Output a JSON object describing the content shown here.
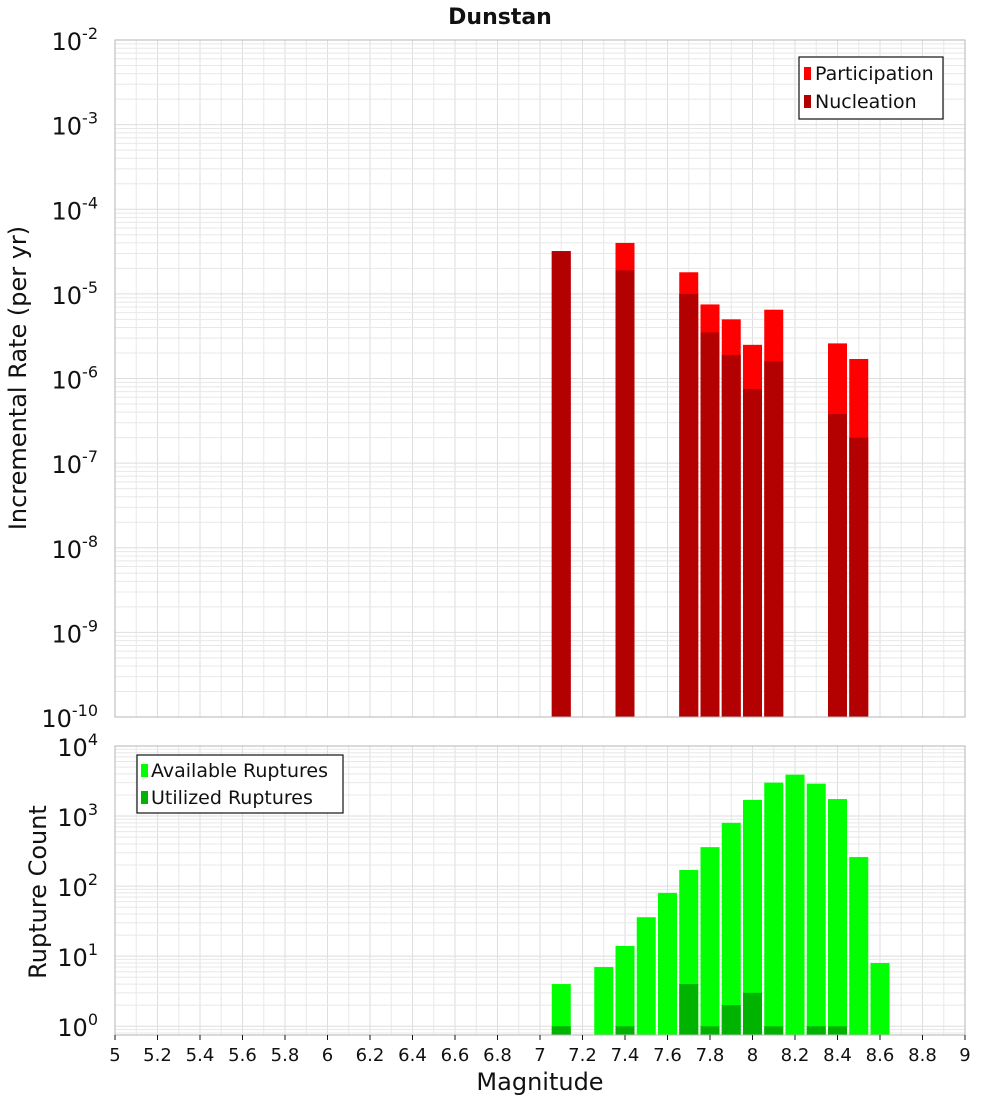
{
  "chart_data": [
    {
      "type": "bar",
      "title": "Dunstan",
      "xlabel": "",
      "ylabel": "Incremental Rate (per yr)",
      "yscale": "log",
      "xlim": [
        5,
        9
      ],
      "ylim": [
        1e-10,
        0.01
      ],
      "x": [
        7.1,
        7.4,
        7.7,
        7.8,
        7.9,
        8.0,
        8.1,
        8.4,
        8.5
      ],
      "series": [
        {
          "name": "Participation",
          "color": "#ff0000",
          "values": [
            3.2e-05,
            4e-05,
            1.8e-05,
            7.5e-06,
            5e-06,
            2.5e-06,
            6.5e-06,
            2.6e-06,
            1.7e-06
          ]
        },
        {
          "name": "Nucleation",
          "color": "#b30000",
          "values": [
            3.2e-05,
            1.9e-05,
            1e-05,
            3.5e-06,
            1.9e-06,
            7.5e-07,
            1.6e-06,
            3.8e-07,
            2e-07
          ]
        }
      ],
      "y_ticks": [
        {
          "base": "10",
          "exp": "-10",
          "value": 1e-10
        },
        {
          "base": "10",
          "exp": "-9",
          "value": 1e-09
        },
        {
          "base": "10",
          "exp": "-8",
          "value": 1e-08
        },
        {
          "base": "10",
          "exp": "-7",
          "value": 1e-07
        },
        {
          "base": "10",
          "exp": "-6",
          "value": 1e-06
        },
        {
          "base": "10",
          "exp": "-5",
          "value": 1e-05
        },
        {
          "base": "10",
          "exp": "-4",
          "value": 0.0001
        },
        {
          "base": "10",
          "exp": "-3",
          "value": 0.001
        },
        {
          "base": "10",
          "exp": "-2",
          "value": 0.01
        }
      ],
      "legend": {
        "position": "top-right",
        "entries": [
          "Participation",
          "Nucleation"
        ]
      }
    },
    {
      "type": "bar",
      "title": "",
      "xlabel": "Magnitude",
      "ylabel": "Rupture Count",
      "yscale": "log",
      "xlim": [
        5,
        9
      ],
      "ylim": [
        0.75,
        10000
      ],
      "x": [
        7.1,
        7.2,
        7.3,
        7.4,
        7.5,
        7.6,
        7.7,
        7.8,
        7.9,
        8.0,
        8.1,
        8.2,
        8.3,
        8.4,
        8.5,
        8.6,
        8.7
      ],
      "series": [
        {
          "name": "Available Ruptures",
          "color": "#00ff00",
          "values": [
            4,
            null,
            7,
            14,
            36,
            80,
            170,
            360,
            800,
            1700,
            3000,
            3900,
            2900,
            1750,
            260,
            8,
            null
          ]
        },
        {
          "name": "Utilized Ruptures",
          "color": "#00b300",
          "values": [
            1,
            null,
            null,
            1,
            null,
            null,
            4,
            1,
            2,
            3,
            1,
            null,
            1,
            1,
            null,
            null,
            null
          ]
        }
      ],
      "y_ticks": [
        {
          "base": "10",
          "exp": "0",
          "value": 1
        },
        {
          "base": "10",
          "exp": "1",
          "value": 10
        },
        {
          "base": "10",
          "exp": "2",
          "value": 100
        },
        {
          "base": "10",
          "exp": "3",
          "value": 1000
        },
        {
          "base": "10",
          "exp": "4",
          "value": 10000
        }
      ],
      "x_ticks": [
        "5",
        "5.2",
        "5.4",
        "5.6",
        "5.8",
        "6",
        "6.2",
        "6.4",
        "6.6",
        "6.8",
        "7",
        "7.2",
        "7.4",
        "7.6",
        "7.8",
        "8",
        "8.2",
        "8.4",
        "8.6",
        "8.8",
        "9"
      ],
      "legend": {
        "position": "top-left",
        "entries": [
          "Available Ruptures",
          "Utilized Ruptures"
        ]
      }
    }
  ]
}
